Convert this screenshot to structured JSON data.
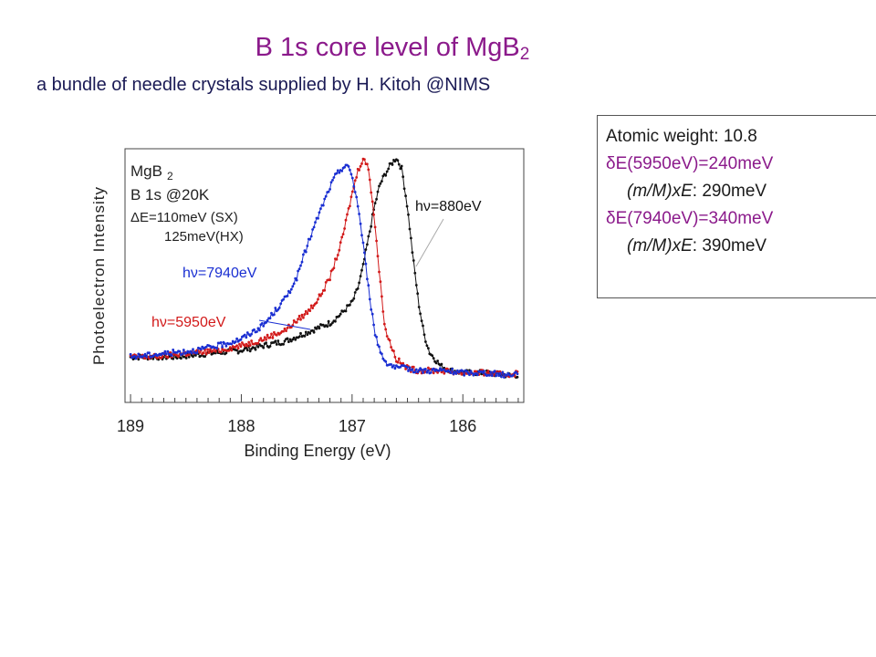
{
  "header": {
    "title_main": "B 1s core level of MgB",
    "title_sub": "2",
    "subtitle": "a bundle of needle crystals supplied by H. Kitoh @NIMS"
  },
  "info_box": {
    "atomic_weight": "Atomic weight: 10.8",
    "delta_5950_symbol": "δ",
    "delta_5950_text": "E(5950eV)=240meV",
    "mmxe_5950_italic": "(m/M)xE",
    "mmxe_5950_value": ": 290meV",
    "delta_7940_symbol": "δ",
    "delta_7940_text": "E(7940eV)=340meV",
    "mmxe_7940_italic": "(m/M)xE",
    "mmxe_7940_value": ": 390meV"
  },
  "chart_data": {
    "type": "line",
    "xlabel": "Binding Energy (eV)",
    "ylabel": "Photoelectron Intensity",
    "xlim": [
      189.05,
      185.45
    ],
    "x_reversed": true,
    "ylim": [
      0,
      1.0
    ],
    "x_ticks": [
      189,
      188,
      187,
      186
    ],
    "grid": false,
    "annotations": {
      "sample_main": "MgB",
      "sample_sub": "2",
      "core_level": "B 1s @20K",
      "resolution_symbol": "Δ",
      "resolution_sx": "E=110meV (SX)",
      "resolution_hx": "125meV(HX)"
    },
    "series": [
      {
        "name": "hν=880eV",
        "label_prefix": "h",
        "label_nu": "ν",
        "label_rest": "=880eV",
        "color": "#111111",
        "x": [
          189.0,
          188.8,
          188.6,
          188.4,
          188.2,
          188.0,
          187.8,
          187.6,
          187.4,
          187.2,
          187.1,
          187.0,
          186.95,
          186.9,
          186.85,
          186.8,
          186.75,
          186.7,
          186.65,
          186.6,
          186.55,
          186.5,
          186.45,
          186.4,
          186.35,
          186.3,
          186.2,
          186.1,
          186.0,
          185.8,
          185.6,
          185.5
        ],
        "y": [
          0.1,
          0.1,
          0.1,
          0.11,
          0.12,
          0.13,
          0.15,
          0.17,
          0.21,
          0.25,
          0.29,
          0.34,
          0.4,
          0.5,
          0.63,
          0.76,
          0.86,
          0.91,
          0.95,
          0.98,
          0.93,
          0.76,
          0.54,
          0.34,
          0.2,
          0.12,
          0.06,
          0.04,
          0.03,
          0.03,
          0.02,
          0.02
        ]
      },
      {
        "name": "hν=5950eV",
        "label_prefix": "h",
        "label_nu": "ν",
        "label_rest": "=5950eV",
        "color": "#d21a1a",
        "x": [
          189.0,
          188.8,
          188.6,
          188.4,
          188.2,
          188.0,
          187.8,
          187.6,
          187.4,
          187.3,
          187.2,
          187.1,
          187.0,
          186.95,
          186.9,
          186.85,
          186.8,
          186.75,
          186.7,
          186.6,
          186.5,
          186.4,
          186.2,
          186.0,
          185.8,
          185.6,
          185.5
        ],
        "y": [
          0.1,
          0.1,
          0.11,
          0.12,
          0.13,
          0.15,
          0.18,
          0.22,
          0.3,
          0.36,
          0.45,
          0.6,
          0.82,
          0.92,
          0.98,
          0.93,
          0.72,
          0.45,
          0.22,
          0.09,
          0.05,
          0.04,
          0.04,
          0.03,
          0.03,
          0.02,
          0.03
        ]
      },
      {
        "name": "hν=7940eV",
        "label_prefix": "h",
        "label_nu": "ν",
        "label_rest": "=7940eV",
        "color": "#1a2fd2",
        "x": [
          189.0,
          188.8,
          188.6,
          188.4,
          188.2,
          188.0,
          187.8,
          187.6,
          187.5,
          187.4,
          187.3,
          187.2,
          187.15,
          187.1,
          187.05,
          187.0,
          186.95,
          186.9,
          186.85,
          186.8,
          186.75,
          186.7,
          186.6,
          186.5,
          186.4,
          186.2,
          186.0,
          185.8,
          185.6,
          185.5
        ],
        "y": [
          0.1,
          0.11,
          0.12,
          0.13,
          0.15,
          0.18,
          0.24,
          0.36,
          0.45,
          0.6,
          0.73,
          0.85,
          0.9,
          0.93,
          0.95,
          0.9,
          0.78,
          0.6,
          0.4,
          0.22,
          0.13,
          0.08,
          0.05,
          0.05,
          0.04,
          0.04,
          0.03,
          0.03,
          0.02,
          0.03
        ]
      }
    ]
  }
}
